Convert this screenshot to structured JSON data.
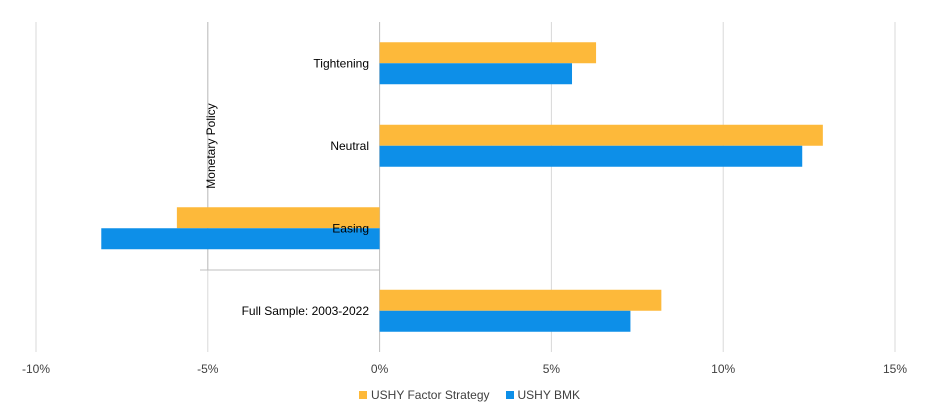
{
  "chart_data": {
    "type": "bar",
    "orientation": "horizontal",
    "group_label": "Monetary Policy",
    "categories": [
      "Tightening",
      "Neutral",
      "Easing",
      "Full Sample: 2003-2022"
    ],
    "series": [
      {
        "name": "USHY Factor Strategy",
        "color": "#FDB93A",
        "values": [
          6.3,
          12.9,
          -5.9,
          8.2
        ]
      },
      {
        "name": "USHY BMK",
        "color": "#0D8FE8",
        "values": [
          5.6,
          12.3,
          -8.1,
          7.3
        ]
      }
    ],
    "x_ticks": [
      "-10%",
      "-5%",
      "0%",
      "5%",
      "10%",
      "15%"
    ],
    "xlim": [
      -10,
      15
    ],
    "grid": true,
    "legend_position": "bottom"
  }
}
